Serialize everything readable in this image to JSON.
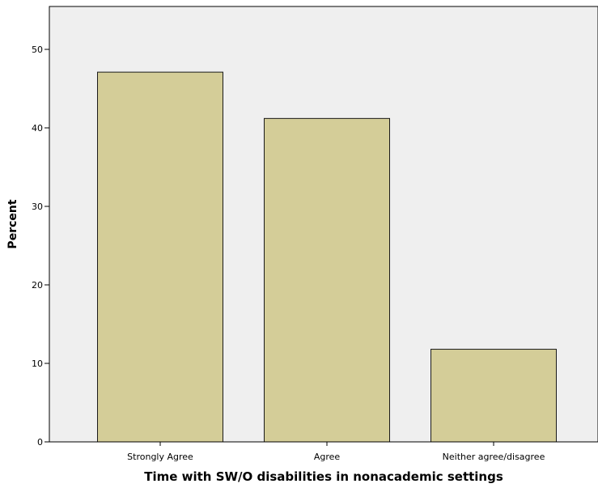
{
  "chart_data": {
    "type": "bar",
    "categories": [
      "Strongly Agree",
      "Agree",
      "Neither agree/disagree"
    ],
    "values": [
      47.1,
      41.2,
      11.8
    ],
    "xlabel": "Time with SW/O disabilities in nonacademic settings",
    "ylabel": "Percent",
    "ylim": [
      0,
      55
    ],
    "yticks": [
      0,
      10,
      20,
      30,
      40,
      50
    ],
    "grid": false,
    "legend": "none",
    "colors": {
      "plot_background": "#efefef",
      "bar_fill": "#d4cd98",
      "bar_stroke": "#1a1a1a",
      "axis": "#000000"
    }
  }
}
